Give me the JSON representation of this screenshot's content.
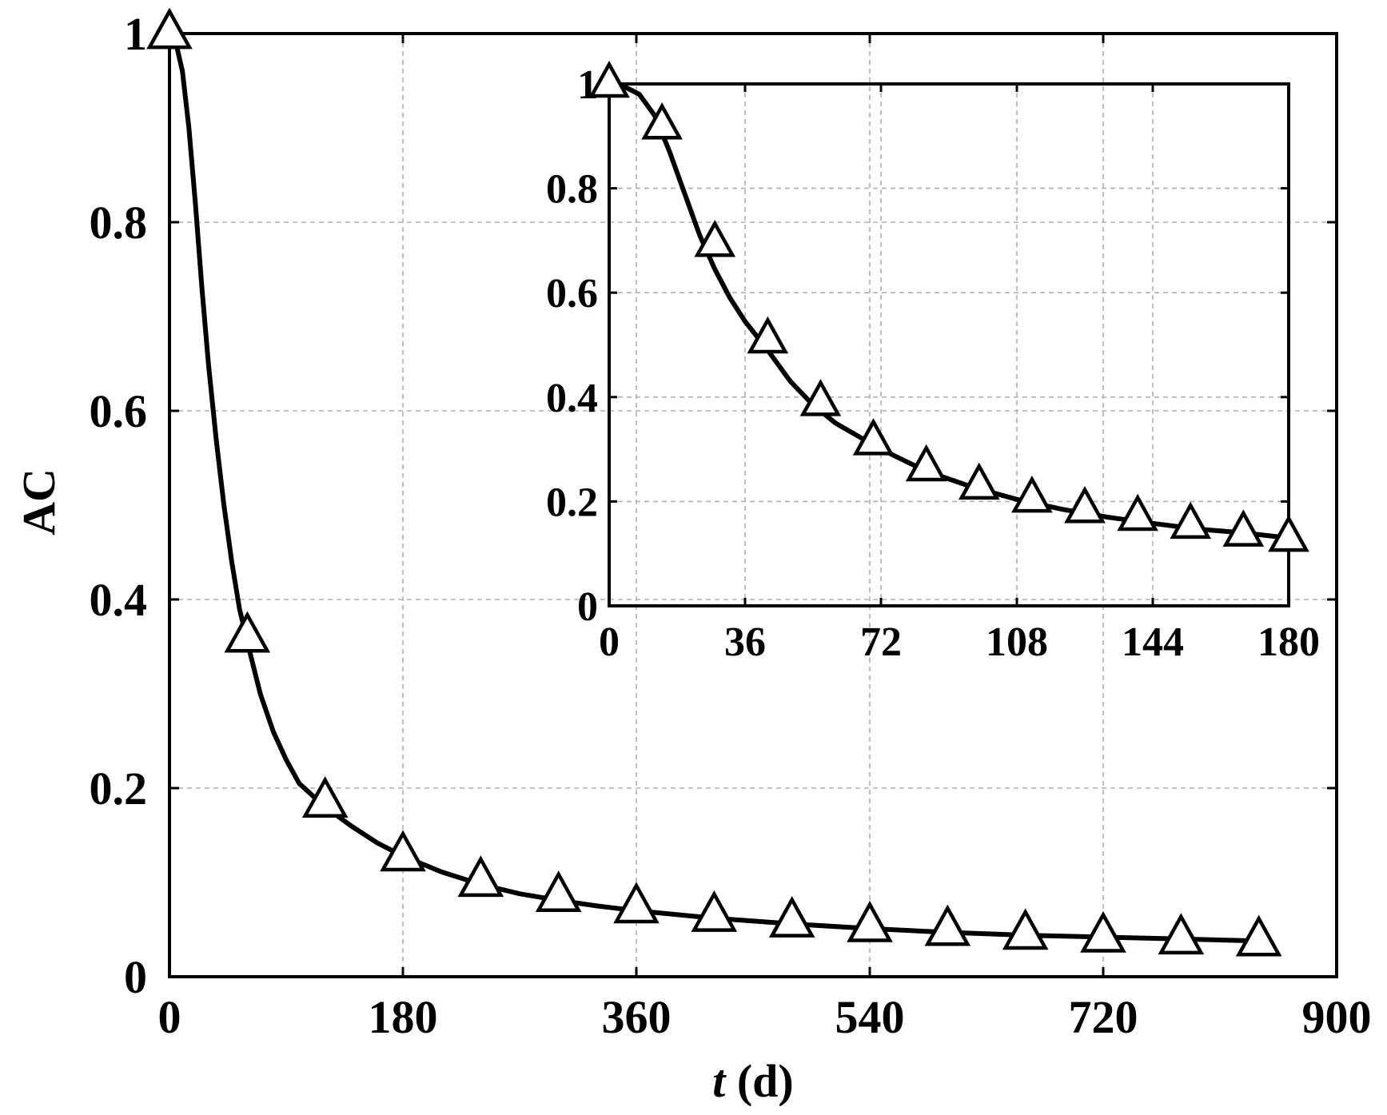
{
  "chart_data": [
    {
      "type": "line",
      "xlabel_var": "t",
      "xlabel_unit": " (d)",
      "ylabel": "AC",
      "xlim": [
        0,
        900
      ],
      "ylim": [
        0,
        1
      ],
      "x_ticks": [
        "0",
        "180",
        "360",
        "540",
        "720",
        "900"
      ],
      "y_ticks": [
        "0",
        "0.2",
        "0.4",
        "0.6",
        "0.8",
        "1"
      ],
      "grid": true,
      "marker": "open-triangle",
      "curve": {
        "x": [
          0,
          5,
          10,
          15,
          20,
          25,
          30,
          36,
          42,
          48,
          54,
          60,
          70,
          80,
          90,
          100,
          120,
          140,
          160,
          180,
          210,
          240,
          270,
          300,
          330,
          360,
          420,
          480,
          540,
          600,
          660,
          720,
          780,
          840
        ],
        "y": [
          1.0,
          0.99,
          0.96,
          0.9,
          0.82,
          0.73,
          0.65,
          0.57,
          0.5,
          0.44,
          0.39,
          0.355,
          0.3,
          0.26,
          0.23,
          0.205,
          0.18,
          0.16,
          0.142,
          0.128,
          0.111,
          0.098,
          0.088,
          0.081,
          0.075,
          0.07,
          0.062,
          0.056,
          0.051,
          0.047,
          0.044,
          0.042,
          0.04,
          0.038
        ]
      },
      "markers": {
        "x": [
          0,
          60,
          120,
          180,
          240,
          300,
          360,
          420,
          480,
          540,
          600,
          660,
          720,
          780,
          840
        ],
        "y": [
          1.0,
          0.36,
          0.185,
          0.128,
          0.101,
          0.085,
          0.073,
          0.064,
          0.058,
          0.053,
          0.049,
          0.045,
          0.042,
          0.04,
          0.038
        ]
      }
    },
    {
      "type": "line",
      "role": "inset",
      "xlim": [
        0,
        180
      ],
      "ylim": [
        0,
        1
      ],
      "x_ticks": [
        "0",
        "36",
        "72",
        "108",
        "144",
        "180"
      ],
      "y_ticks": [
        "0",
        "0.2",
        "0.4",
        "0.6",
        "0.8",
        "1"
      ],
      "grid": true,
      "marker": "open-triangle",
      "curve": {
        "x": [
          0,
          4,
          8,
          12,
          16,
          20,
          24,
          28,
          32,
          36,
          42,
          48,
          54,
          60,
          66,
          72,
          84,
          96,
          108,
          120,
          132,
          144,
          156,
          168,
          180
        ],
        "y": [
          1.0,
          0.995,
          0.98,
          0.94,
          0.87,
          0.79,
          0.71,
          0.645,
          0.59,
          0.545,
          0.49,
          0.43,
          0.385,
          0.35,
          0.325,
          0.3,
          0.258,
          0.228,
          0.204,
          0.185,
          0.17,
          0.158,
          0.147,
          0.14,
          0.13
        ]
      },
      "markers": {
        "x": [
          0,
          14,
          28,
          42,
          56,
          70,
          84,
          98,
          112,
          126,
          140,
          154,
          168,
          180
        ],
        "y": [
          1.0,
          0.92,
          0.695,
          0.51,
          0.39,
          0.315,
          0.265,
          0.23,
          0.205,
          0.185,
          0.17,
          0.155,
          0.14,
          0.13
        ]
      }
    }
  ]
}
